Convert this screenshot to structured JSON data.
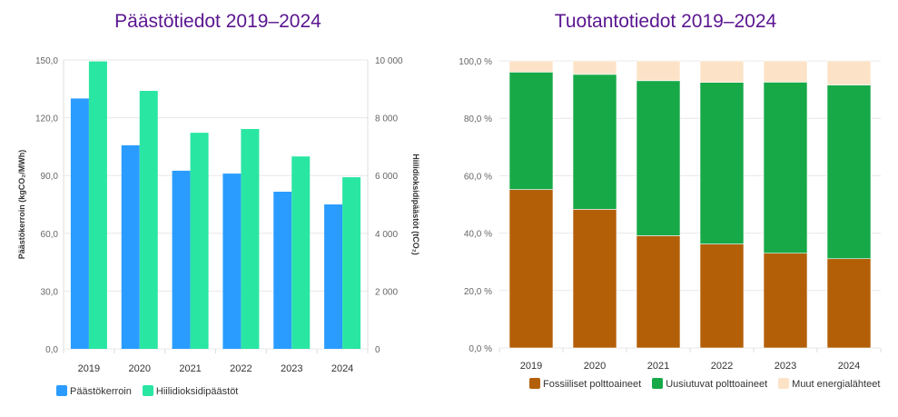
{
  "chart_data": [
    {
      "type": "bar",
      "title": "Päästötiedot 2019–2024",
      "categories": [
        "2019",
        "2020",
        "2021",
        "2022",
        "2023",
        "2024"
      ],
      "ylabel": "Päästökerroin (kgCO₂/MWh)",
      "y2label": "Hiilidioksidipäästöt (tCO₂)",
      "ylim": [
        0,
        150
      ],
      "y2lim": [
        0,
        10000
      ],
      "yticks": [
        "0,0",
        "30,0",
        "60,0",
        "90,0",
        "120,0",
        "150,0"
      ],
      "y2ticks": [
        "0",
        "2 000",
        "4 000",
        "6 000",
        "8 000",
        "10 000"
      ],
      "legend_position": "bottom-left",
      "series": [
        {
          "name": "Päästökerroin",
          "axis": "left",
          "color": "#2b9cff",
          "values": [
            130,
            105.7,
            92.5,
            91,
            81.6,
            75
          ]
        },
        {
          "name": "Hiilidioksidipäästöt",
          "axis": "right",
          "color": "#2ae6a3",
          "values": [
            9950,
            8930,
            7480,
            7610,
            6660,
            5940
          ]
        }
      ]
    },
    {
      "type": "bar",
      "stacked": true,
      "title": "Tuotantotiedot 2019–2024",
      "categories": [
        "2019",
        "2020",
        "2021",
        "2022",
        "2023",
        "2024"
      ],
      "ylim": [
        0,
        100
      ],
      "yticks": [
        "0,0 %",
        "20,0 %",
        "40,0 %",
        "60,0 %",
        "80,0 %",
        "100,0 %"
      ],
      "legend_position": "bottom",
      "series": [
        {
          "name": "Fossiiliset polttoaineet",
          "color": "#b35f08",
          "values": [
            55.2,
            48.3,
            39.1,
            36.2,
            33.0,
            31.1
          ]
        },
        {
          "name": "Uusiutuvat polttoaineet",
          "color": "#17a948",
          "values": [
            40.9,
            47.0,
            54.0,
            56.3,
            59.6,
            60.5
          ]
        },
        {
          "name": "Muut energialähteet",
          "color": "#fce3c8",
          "values": [
            3.9,
            4.7,
            6.9,
            7.5,
            7.4,
            8.4
          ]
        }
      ]
    }
  ]
}
